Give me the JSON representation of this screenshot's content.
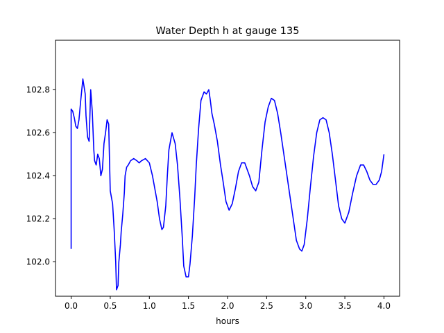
{
  "chart_data": {
    "type": "line",
    "title": "Water Depth h at gauge 135",
    "xlabel": "hours",
    "ylabel": "",
    "xlim": [
      -0.2,
      4.2
    ],
    "ylim": [
      101.84,
      103.03
    ],
    "xticks": [
      0.0,
      0.5,
      1.0,
      1.5,
      2.0,
      2.5,
      3.0,
      3.5,
      4.0
    ],
    "xtick_labels": [
      "0.0",
      "0.5",
      "1.0",
      "1.5",
      "2.0",
      "2.5",
      "3.0",
      "3.5",
      "4.0"
    ],
    "yticks": [
      102.0,
      102.2,
      102.4,
      102.6,
      102.8
    ],
    "ytick_labels": [
      "102.0",
      "102.2",
      "102.4",
      "102.6",
      "102.8"
    ],
    "grid": false,
    "colors": {
      "line": "#0000ff",
      "axes": "#000000",
      "background": "#ffffff"
    },
    "series": [
      {
        "x": [
          0.0,
          0.0,
          0.02,
          0.04,
          0.06,
          0.08,
          0.1,
          0.12,
          0.15,
          0.18,
          0.19,
          0.21,
          0.23,
          0.25,
          0.27,
          0.29,
          0.3,
          0.32,
          0.34,
          0.36,
          0.38,
          0.4,
          0.42,
          0.44,
          0.46,
          0.48,
          0.5,
          0.53,
          0.55,
          0.57,
          0.58,
          0.6,
          0.61,
          0.63,
          0.64,
          0.66,
          0.68,
          0.69,
          0.71,
          0.73,
          0.76,
          0.8,
          0.84,
          0.87,
          0.9,
          0.95,
          1.0,
          1.04,
          1.08,
          1.1,
          1.13,
          1.16,
          1.18,
          1.21,
          1.23,
          1.25,
          1.29,
          1.33,
          1.36,
          1.39,
          1.42,
          1.44,
          1.47,
          1.5,
          1.52,
          1.55,
          1.58,
          1.6,
          1.63,
          1.66,
          1.7,
          1.73,
          1.76,
          1.78,
          1.8,
          1.83,
          1.87,
          1.91,
          1.94,
          1.98,
          2.02,
          2.06,
          2.1,
          2.14,
          2.18,
          2.22,
          2.25,
          2.28,
          2.32,
          2.36,
          2.4,
          2.44,
          2.48,
          2.52,
          2.56,
          2.6,
          2.64,
          2.68,
          2.72,
          2.76,
          2.8,
          2.84,
          2.88,
          2.92,
          2.95,
          2.98,
          3.02,
          3.06,
          3.1,
          3.14,
          3.18,
          3.22,
          3.26,
          3.3,
          3.34,
          3.38,
          3.42,
          3.46,
          3.5,
          3.55,
          3.6,
          3.65,
          3.7,
          3.74,
          3.78,
          3.82,
          3.86,
          3.9,
          3.94,
          3.97,
          4.0
        ],
        "y": [
          102.06,
          102.71,
          102.7,
          102.67,
          102.63,
          102.62,
          102.66,
          102.74,
          102.85,
          102.78,
          102.68,
          102.58,
          102.56,
          102.8,
          102.7,
          102.52,
          102.47,
          102.45,
          102.5,
          102.48,
          102.4,
          102.43,
          102.55,
          102.6,
          102.66,
          102.64,
          102.33,
          102.27,
          102.15,
          102.0,
          101.87,
          101.89,
          102.0,
          102.08,
          102.14,
          102.22,
          102.32,
          102.4,
          102.44,
          102.45,
          102.47,
          102.48,
          102.47,
          102.46,
          102.47,
          102.48,
          102.46,
          102.4,
          102.32,
          102.28,
          102.2,
          102.15,
          102.16,
          102.26,
          102.4,
          102.52,
          102.6,
          102.55,
          102.45,
          102.3,
          102.12,
          101.98,
          101.93,
          101.93,
          101.99,
          102.12,
          102.3,
          102.45,
          102.62,
          102.75,
          102.79,
          102.78,
          102.8,
          102.75,
          102.69,
          102.64,
          102.56,
          102.45,
          102.38,
          102.28,
          102.24,
          102.27,
          102.34,
          102.42,
          102.46,
          102.46,
          102.43,
          102.4,
          102.35,
          102.33,
          102.37,
          102.52,
          102.65,
          102.72,
          102.76,
          102.75,
          102.69,
          102.6,
          102.5,
          102.4,
          102.3,
          102.2,
          102.1,
          102.06,
          102.05,
          102.08,
          102.2,
          102.35,
          102.49,
          102.6,
          102.66,
          102.67,
          102.66,
          102.6,
          102.5,
          102.38,
          102.26,
          102.2,
          102.18,
          102.23,
          102.32,
          102.4,
          102.45,
          102.45,
          102.42,
          102.38,
          102.36,
          102.36,
          102.38,
          102.42,
          102.5
        ]
      }
    ]
  }
}
